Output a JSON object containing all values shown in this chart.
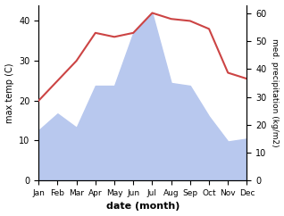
{
  "months": [
    "Jan",
    "Feb",
    "Mar",
    "Apr",
    "May",
    "Jun",
    "Jul",
    "Aug",
    "Sep",
    "Oct",
    "Nov",
    "Dec"
  ],
  "x": [
    1,
    2,
    3,
    4,
    5,
    6,
    7,
    8,
    9,
    10,
    11,
    12
  ],
  "temp": [
    20,
    25,
    30,
    37,
    36,
    37,
    42,
    40.5,
    40,
    38,
    27,
    25.5
  ],
  "precip": [
    18,
    24,
    19,
    34,
    34,
    53,
    60,
    35,
    34,
    23,
    14,
    15
  ],
  "temp_color": "#cc4444",
  "precip_fill_color": "#b8c8ee",
  "left_ylim": [
    0,
    44
  ],
  "right_ylim": [
    0,
    63
  ],
  "left_yticks": [
    0,
    10,
    20,
    30,
    40
  ],
  "right_yticks": [
    0,
    10,
    20,
    30,
    40,
    50,
    60
  ],
  "ylabel_left": "max temp (C)",
  "ylabel_right": "med. precipitation (kg/m2)",
  "xlabel": "date (month)",
  "fig_width": 3.18,
  "fig_height": 2.42,
  "dpi": 100
}
